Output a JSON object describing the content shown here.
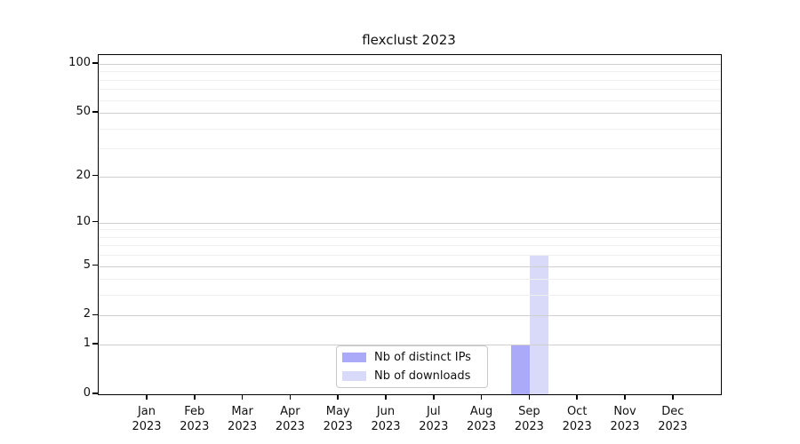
{
  "chart_data": {
    "type": "bar",
    "title": "flexclust 2023",
    "categories": [
      "Jan",
      "Feb",
      "Mar",
      "Apr",
      "May",
      "Jun",
      "Jul",
      "Aug",
      "Sep",
      "Oct",
      "Nov",
      "Dec"
    ],
    "year": "2023",
    "series": [
      {
        "name": "Nb of distinct IPs",
        "color": "#aaaaf8",
        "values": [
          0,
          0,
          0,
          0,
          0,
          0,
          0,
          0,
          1,
          0,
          0,
          0
        ]
      },
      {
        "name": "Nb of downloads",
        "color": "#d9d9fa",
        "values": [
          0,
          0,
          0,
          0,
          0,
          0,
          0,
          0,
          6,
          0,
          0,
          0
        ]
      }
    ],
    "y_axis": {
      "scale": "log1p",
      "tick_values": [
        0,
        1,
        2,
        5,
        10,
        20,
        50,
        100
      ],
      "minor_gridline_values": [
        3,
        4,
        6,
        7,
        8,
        9,
        30,
        40,
        60,
        70,
        80,
        90
      ],
      "range": [
        0,
        103
      ]
    },
    "x_axis": {
      "tick_label_format": "month over year"
    },
    "legend": {
      "position": "bottom-center",
      "entries": [
        "Nb of distinct IPs",
        "Nb of downloads"
      ]
    },
    "grid": "on",
    "colors": {
      "major_grid": "#cfcfcf",
      "minor_grid": "#efefef",
      "axis": "#000000",
      "text": "#111111",
      "background": "#ffffff"
    }
  }
}
